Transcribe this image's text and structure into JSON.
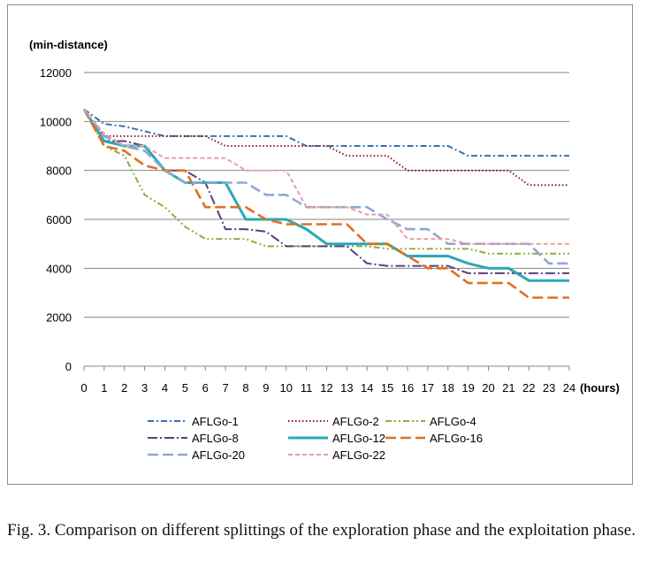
{
  "chart_data": {
    "type": "line",
    "ylabel": "(min-distance)",
    "xlabel": "(hours)",
    "x": [
      0,
      1,
      2,
      3,
      4,
      5,
      6,
      7,
      8,
      9,
      10,
      11,
      12,
      13,
      14,
      15,
      16,
      17,
      18,
      19,
      20,
      21,
      22,
      23,
      24
    ],
    "xlim": [
      0,
      24
    ],
    "ylim": [
      0,
      12000
    ],
    "yticks": [
      0,
      2000,
      4000,
      6000,
      8000,
      10000,
      12000
    ],
    "grid": "horizontal",
    "legend_position": "bottom",
    "series": [
      {
        "name": "AFLGo-1",
        "color": "#3a6fb0",
        "dash": "dashdot",
        "points": [
          [
            0,
            10500
          ],
          [
            1,
            9900
          ],
          [
            2,
            9800
          ],
          [
            3,
            9600
          ],
          [
            4,
            9400
          ],
          [
            5,
            9400
          ],
          [
            6,
            9400
          ],
          [
            7,
            9400
          ],
          [
            8,
            9400
          ],
          [
            9,
            9400
          ],
          [
            10,
            9400
          ],
          [
            11,
            9000
          ],
          [
            12,
            9000
          ],
          [
            13,
            9000
          ],
          [
            14,
            9000
          ],
          [
            15,
            9000
          ],
          [
            16,
            9000
          ],
          [
            17,
            9000
          ],
          [
            18,
            9000
          ],
          [
            19,
            8600
          ],
          [
            20,
            8600
          ],
          [
            21,
            8600
          ],
          [
            22,
            8600
          ],
          [
            23,
            8600
          ],
          [
            24,
            8600
          ]
        ]
      },
      {
        "name": "AFLGo-2",
        "color": "#8b1a1a",
        "dash": "dotted",
        "points": [
          [
            0,
            10500
          ],
          [
            1,
            9400
          ],
          [
            2,
            9400
          ],
          [
            3,
            9400
          ],
          [
            4,
            9400
          ],
          [
            5,
            9400
          ],
          [
            6,
            9400
          ],
          [
            7,
            9000
          ],
          [
            8,
            9000
          ],
          [
            9,
            9000
          ],
          [
            10,
            9000
          ],
          [
            11,
            9000
          ],
          [
            12,
            9000
          ],
          [
            13,
            8600
          ],
          [
            14,
            8600
          ],
          [
            15,
            8600
          ],
          [
            16,
            8000
          ],
          [
            17,
            8000
          ],
          [
            18,
            8000
          ],
          [
            19,
            8000
          ],
          [
            20,
            8000
          ],
          [
            21,
            8000
          ],
          [
            22,
            7400
          ],
          [
            23,
            7400
          ],
          [
            24,
            7400
          ]
        ]
      },
      {
        "name": "AFLGo-4",
        "color": "#8fae3c",
        "dash": "dashdotdot",
        "points": [
          [
            0,
            10500
          ],
          [
            1,
            9000
          ],
          [
            2,
            8600
          ],
          [
            3,
            7000
          ],
          [
            4,
            6500
          ],
          [
            5,
            5700
          ],
          [
            6,
            5200
          ],
          [
            7,
            5200
          ],
          [
            8,
            5200
          ],
          [
            9,
            4900
          ],
          [
            10,
            4900
          ],
          [
            11,
            4900
          ],
          [
            12,
            4900
          ],
          [
            13,
            4900
          ],
          [
            14,
            4900
          ],
          [
            15,
            4800
          ],
          [
            16,
            4800
          ],
          [
            17,
            4800
          ],
          [
            18,
            4800
          ],
          [
            19,
            4800
          ],
          [
            20,
            4600
          ],
          [
            21,
            4600
          ],
          [
            22,
            4600
          ],
          [
            23,
            4600
          ],
          [
            24,
            4600
          ]
        ]
      },
      {
        "name": "AFLGo-8",
        "color": "#5a3f7e",
        "dash": "longdashdot",
        "points": [
          [
            0,
            10500
          ],
          [
            1,
            9200
          ],
          [
            2,
            9200
          ],
          [
            3,
            9000
          ],
          [
            4,
            8000
          ],
          [
            5,
            8000
          ],
          [
            6,
            7500
          ],
          [
            7,
            5600
          ],
          [
            8,
            5600
          ],
          [
            9,
            5500
          ],
          [
            10,
            4900
          ],
          [
            11,
            4900
          ],
          [
            12,
            4900
          ],
          [
            13,
            4900
          ],
          [
            14,
            4200
          ],
          [
            15,
            4100
          ],
          [
            16,
            4100
          ],
          [
            17,
            4100
          ],
          [
            18,
            4100
          ],
          [
            19,
            3800
          ],
          [
            20,
            3800
          ],
          [
            21,
            3800
          ],
          [
            22,
            3800
          ],
          [
            23,
            3800
          ],
          [
            24,
            3800
          ]
        ]
      },
      {
        "name": "AFLGo-12",
        "color": "#2aa8b8",
        "dash": "solid",
        "points": [
          [
            0,
            10500
          ],
          [
            1,
            9200
          ],
          [
            2,
            9000
          ],
          [
            3,
            9000
          ],
          [
            4,
            8000
          ],
          [
            5,
            7500
          ],
          [
            6,
            7500
          ],
          [
            7,
            7500
          ],
          [
            8,
            6000
          ],
          [
            9,
            6000
          ],
          [
            10,
            6000
          ],
          [
            11,
            5600
          ],
          [
            12,
            5000
          ],
          [
            13,
            5000
          ],
          [
            14,
            5000
          ],
          [
            15,
            5000
          ],
          [
            16,
            4500
          ],
          [
            17,
            4500
          ],
          [
            18,
            4500
          ],
          [
            19,
            4200
          ],
          [
            20,
            4000
          ],
          [
            21,
            4000
          ],
          [
            22,
            3500
          ],
          [
            23,
            3500
          ],
          [
            24,
            3500
          ]
        ]
      },
      {
        "name": "AFLGo-16",
        "color": "#e0701e",
        "dash": "longdash",
        "points": [
          [
            0,
            10500
          ],
          [
            1,
            9000
          ],
          [
            2,
            8800
          ],
          [
            3,
            8200
          ],
          [
            4,
            8000
          ],
          [
            5,
            8000
          ],
          [
            6,
            6500
          ],
          [
            7,
            6500
          ],
          [
            8,
            6500
          ],
          [
            9,
            6000
          ],
          [
            10,
            5800
          ],
          [
            11,
            5800
          ],
          [
            12,
            5800
          ],
          [
            13,
            5800
          ],
          [
            14,
            5000
          ],
          [
            15,
            5000
          ],
          [
            16,
            4500
          ],
          [
            17,
            4000
          ],
          [
            18,
            4000
          ],
          [
            19,
            3400
          ],
          [
            20,
            3400
          ],
          [
            21,
            3400
          ],
          [
            22,
            2800
          ],
          [
            23,
            2800
          ],
          [
            24,
            2800
          ]
        ]
      },
      {
        "name": "AFLGo-20",
        "color": "#8ea8d4",
        "dash": "longdash",
        "points": [
          [
            0,
            10500
          ],
          [
            1,
            9400
          ],
          [
            2,
            9000
          ],
          [
            3,
            8800
          ],
          [
            4,
            8000
          ],
          [
            5,
            7500
          ],
          [
            6,
            7500
          ],
          [
            7,
            7500
          ],
          [
            8,
            7500
          ],
          [
            9,
            7000
          ],
          [
            10,
            7000
          ],
          [
            11,
            6500
          ],
          [
            12,
            6500
          ],
          [
            13,
            6500
          ],
          [
            14,
            6500
          ],
          [
            15,
            6000
          ],
          [
            16,
            5600
          ],
          [
            17,
            5600
          ],
          [
            18,
            5000
          ],
          [
            19,
            5000
          ],
          [
            20,
            5000
          ],
          [
            21,
            5000
          ],
          [
            22,
            5000
          ],
          [
            23,
            4200
          ],
          [
            24,
            4200
          ]
        ]
      },
      {
        "name": "AFLGo-22",
        "color": "#e8a0a0",
        "dash": "shortdash",
        "points": [
          [
            0,
            10500
          ],
          [
            1,
            9500
          ],
          [
            2,
            9000
          ],
          [
            3,
            9000
          ],
          [
            4,
            8500
          ],
          [
            5,
            8500
          ],
          [
            6,
            8500
          ],
          [
            7,
            8500
          ],
          [
            8,
            8000
          ],
          [
            9,
            8000
          ],
          [
            10,
            8000
          ],
          [
            11,
            6500
          ],
          [
            12,
            6500
          ],
          [
            13,
            6500
          ],
          [
            14,
            6200
          ],
          [
            15,
            6200
          ],
          [
            16,
            5200
          ],
          [
            17,
            5200
          ],
          [
            18,
            5200
          ],
          [
            19,
            5000
          ],
          [
            20,
            5000
          ],
          [
            21,
            5000
          ],
          [
            22,
            5000
          ],
          [
            23,
            5000
          ],
          [
            24,
            5000
          ]
        ]
      }
    ]
  },
  "caption": "Fig. 3.  Comparison on different splittings of the exploration phase and the exploitation phase."
}
